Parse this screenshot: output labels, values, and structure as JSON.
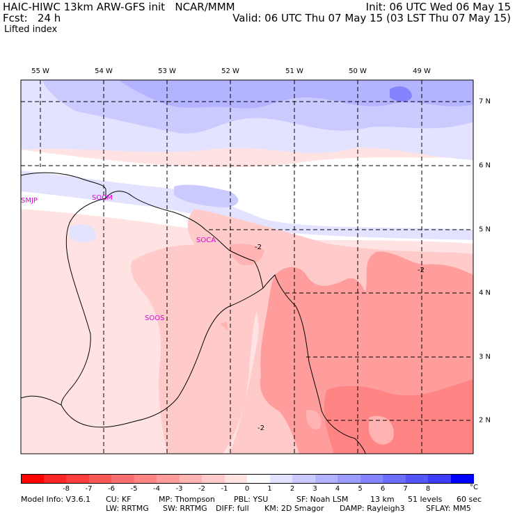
{
  "header": {
    "line1_left": "HAIC-HIWC 13km ARW-GFS init   NCAR/MMM",
    "line2_left": "Fcst:   24 h",
    "line3_left": "Lifted index",
    "line1_right": "Init: 06 UTC Wed 06 May 15",
    "line2_right": "Valid: 06 UTC Thu 07 May 15 (03 LST Thu 07 May 15)"
  },
  "map": {
    "lon_labels": [
      "55 W",
      "54 W",
      "53 W",
      "52 W",
      "51 W",
      "50 W",
      "49 W"
    ],
    "lat_labels": [
      "7 N",
      "6 N",
      "5 N",
      "4 N",
      "3 N",
      "2 N"
    ],
    "stations": [
      "SMJP",
      "SOCM",
      "SOCA",
      "SOOS"
    ],
    "contour_labels": [
      "-2",
      "-2",
      "-2"
    ]
  },
  "colorbar": {
    "colors": [
      "#ff0000",
      "#ff2626",
      "#ff3d3d",
      "#ff5555",
      "#ff6d6d",
      "#ff8484",
      "#ff9c9c",
      "#ffb3b3",
      "#ffcaca",
      "#ffe3e3",
      "#ffffff",
      "#e3e3ff",
      "#cacaff",
      "#b3b3ff",
      "#9c9cff",
      "#8484ff",
      "#6d6dff",
      "#5555ff",
      "#3d3dff",
      "#0000ff"
    ],
    "labels": [
      "-8",
      "-7",
      "-6",
      "-5",
      "-4",
      "-3",
      "-2",
      "-1",
      "0",
      "1",
      "2",
      "3",
      "4",
      "5",
      "6",
      "7",
      "8"
    ],
    "unit": "°C"
  },
  "footer": {
    "line1": [
      "Model Info: V3.6.1",
      "CU: KF",
      "MP: Thompson",
      "PBL: YSU",
      "SF: Noah LSM",
      "13 km",
      "51 levels",
      "60 sec"
    ],
    "line2": [
      "LW: RRTMG",
      "SW: RRTMG",
      "DIFF: full",
      "KM: 2D Smagor",
      "DAMP: Rayleigh3",
      "SFLAY: MM5"
    ]
  }
}
